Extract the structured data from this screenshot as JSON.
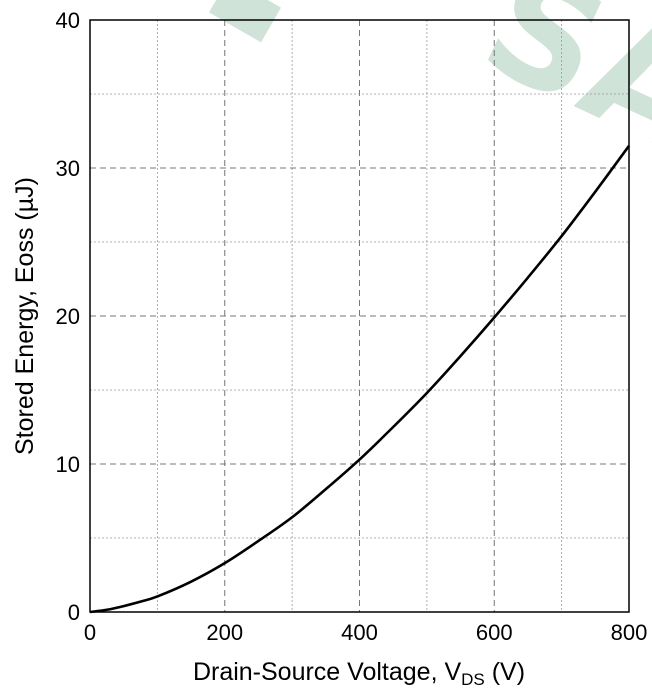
{
  "chart_data": {
    "type": "line",
    "title": "",
    "xlabel_main": "Drain-Source Voltage, V",
    "xlabel_sub": "DS",
    "xlabel_tail": " (V)",
    "ylabel": "Stored Energy, Eoss (µJ)",
    "xlim": [
      0,
      800
    ],
    "ylim": [
      0,
      40
    ],
    "x_ticks": [
      "0",
      "200",
      "400",
      "600",
      "800"
    ],
    "y_ticks": [
      "0",
      "10",
      "20",
      "30",
      "40"
    ],
    "grid": true,
    "legend": "none",
    "series": [
      {
        "color": "#000000",
        "x": [
          0,
          25,
          50,
          75,
          100,
          150,
          200,
          250,
          300,
          350,
          400,
          450,
          500,
          550,
          600,
          650,
          700,
          750,
          800
        ],
        "y": [
          0,
          0.15,
          0.4,
          0.7,
          1.05,
          2.05,
          3.3,
          4.8,
          6.4,
          8.3,
          10.3,
          12.5,
          14.8,
          17.3,
          19.9,
          22.6,
          25.4,
          28.4,
          31.5
        ]
      }
    ]
  },
  "watermark": {
    "text": "SA",
    "color": "#cfe3d8"
  }
}
